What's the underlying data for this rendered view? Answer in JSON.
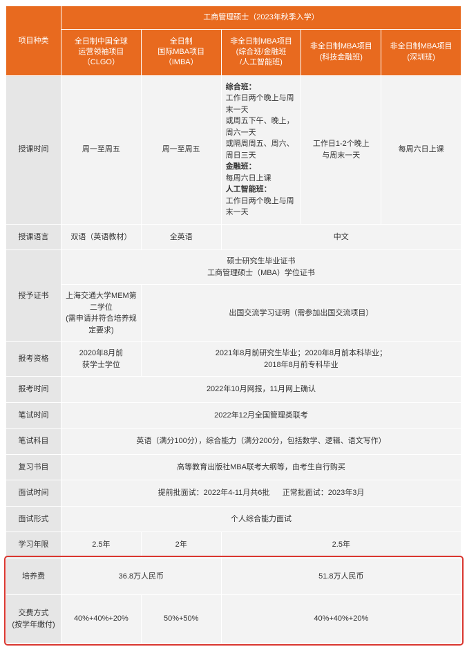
{
  "header": {
    "title": "工商管理硕士（2023年秋季入学）",
    "row_label": "项目种类",
    "programs": [
      "全日制中国全球\n运营领袖项目\n（CLGO）",
      "全日制\n国际MBA项目\n（IMBA）",
      "非全日制MBA项目\n(综合班/金融班\n/人工智能班)",
      "非全日制MBA项目\n(科技金融班)",
      "非全日制MBA项目\n(深圳班)"
    ]
  },
  "rows": {
    "schedule": {
      "label": "授课时间",
      "c1": "周一至周五",
      "c2": "周一至周五",
      "c3_html": "<b>综合班：</b><br>工作日两个晚上与周末一天<br>或周五下午、晚上，周六一天<br>或隔周周五、周六、周日三天<br><b>金融班：</b><br>每周六日上课<br><b>人工智能班：</b><br>工作日两个晚上与周末一天",
      "c4": "工作日1-2个晚上\n与周末一天",
      "c5": "每周六日上课"
    },
    "language": {
      "label": "授课语言",
      "c1": "双语（英语教材）",
      "c2": "全英语",
      "c345": "中文"
    },
    "certificate": {
      "label": "授予证书",
      "top": "硕士研究生毕业证书\n工商管理硕士（MBA）学位证书",
      "c1_bottom": "上海交通大学MEM第二学位\n(需申请并符合培养规定要求)",
      "c2345_bottom": "出国交流学习证明（需参加出国交流项目）"
    },
    "eligibility": {
      "label": "报考资格",
      "c1": "2020年8月前\n获学士学位",
      "c2345": "2021年8月前研究生毕业；2020年8月前本科毕业；\n2018年8月前专科毕业"
    },
    "apply_time": {
      "label": "报考时间",
      "all": "2022年10月网报，11月网上确认"
    },
    "exam_time": {
      "label": "笔试时间",
      "all": "2022年12月全国管理类联考"
    },
    "exam_subjects": {
      "label": "笔试科目",
      "all": "英语（满分100分），综合能力（满分200分，包括数学、逻辑、语文写作）"
    },
    "review_books": {
      "label": "复习书目",
      "all": "高等教育出版社MBA联考大纲等，由考生自行购买"
    },
    "interview_time": {
      "label": "面试时间",
      "c_left": "提前批面试：2022年4-11月共6批",
      "c_right": "正常批面试：2023年3月"
    },
    "interview_format": {
      "label": "面试形式",
      "all": "个人综合能力面试"
    },
    "duration": {
      "label": "学习年限",
      "c1": "2.5年",
      "c2": "2年",
      "c345": "2.5年"
    },
    "tuition": {
      "label": "培养费",
      "c12": "36.8万人民币",
      "c345": "51.8万人民币"
    },
    "payment": {
      "label": "交费方式\n(按学年缴付)",
      "c1": "40%+40%+20%",
      "c2": "50%+50%",
      "c345": "40%+40%+20%"
    }
  },
  "colors": {
    "header_bg": "#e86a1f",
    "header_text": "#ffffff",
    "label_bg": "#e6e6e6",
    "data_bg": "#f3f3f3",
    "border": "#ffffff",
    "text": "#333333",
    "highlight": "#d9362f"
  }
}
